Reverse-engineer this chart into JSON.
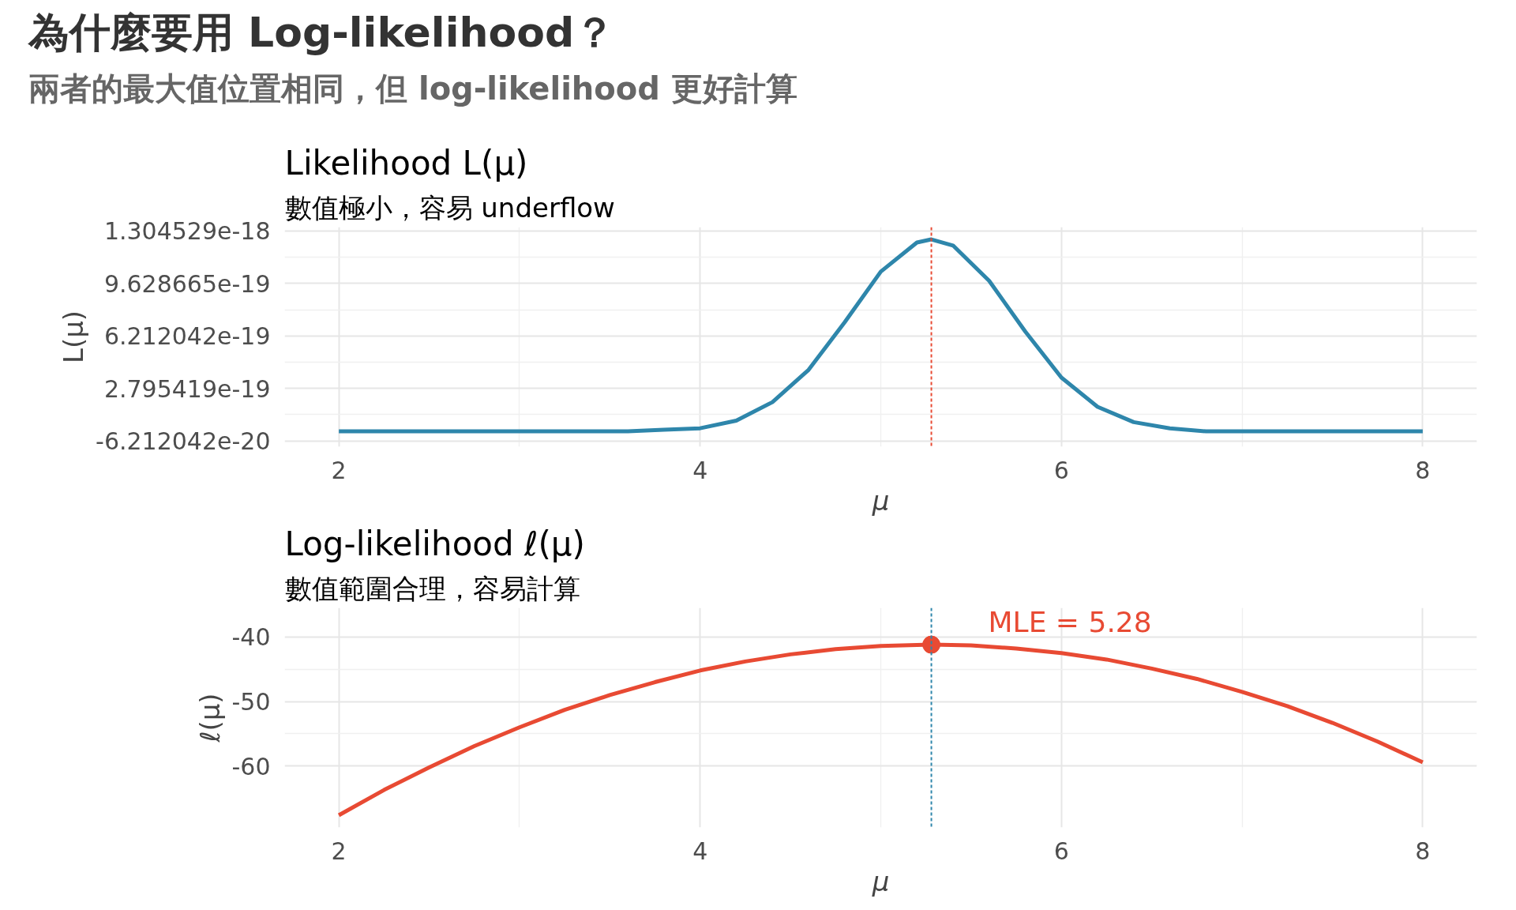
{
  "chart_data": [
    {
      "type": "other",
      "title": "為什麼要用 Log-likelihood？",
      "subtitle": "兩者的最大值位置相同，但 log-likelihood 更好計算"
    },
    {
      "type": "line",
      "title": "Likelihood L(μ)",
      "subtitle": "數值極小，容易 underflow",
      "xlabel": "μ",
      "ylabel": "L(μ)",
      "grid": true,
      "line_style": "solid",
      "xlim": [
        1.7,
        8.3
      ],
      "xticks": [
        2,
        4,
        6,
        8
      ],
      "ylim": [
        -1e-19,
        1.33e-18
      ],
      "yticks": [
        {
          "value": -6.212042e-20,
          "label": "-6.212042e-20"
        },
        {
          "value": 2.795419e-19,
          "label": "2.795419e-19"
        },
        {
          "value": 6.212042e-19,
          "label": "6.212042e-19"
        },
        {
          "value": 9.628665e-19,
          "label": "9.628665e-19"
        },
        {
          "value": 1.304529e-18,
          "label": "1.304529e-18"
        }
      ],
      "series": [
        {
          "type": "line",
          "color": "#2e86ab",
          "x": [
            2,
            3,
            3.6,
            3.8,
            4.0,
            4.2,
            4.4,
            4.6,
            4.8,
            5.0,
            5.2,
            5.28,
            5.4,
            5.6,
            5.8,
            6.0,
            6.2,
            6.4,
            6.6,
            6.8,
            7.0,
            7.5,
            8
          ],
          "values": [
            0,
            0,
            0,
            1e-20,
            2e-20,
            7e-20,
            1.9e-19,
            4e-19,
            7.1e-19,
            1.04e-18,
            1.23e-18,
            1.25e-18,
            1.21e-18,
            9.8e-19,
            6.5e-19,
            3.5e-19,
            1.6e-19,
            6e-20,
            2e-20,
            0,
            0,
            0,
            0
          ]
        }
      ],
      "ref_lines": [
        {
          "axis": "x",
          "value": 5.28,
          "label": null,
          "color": "#e84a33",
          "line_style": "dashed"
        }
      ]
    },
    {
      "type": "line",
      "title": "Log-likelihood ℓ(μ)",
      "subtitle": "數值範圍合理，容易計算",
      "xlabel": "μ",
      "ylabel": "ℓ(μ)",
      "grid": true,
      "line_style": "solid",
      "xlim": [
        1.7,
        8.3
      ],
      "xticks": [
        2,
        4,
        6,
        8
      ],
      "ylim": [
        -69.5,
        -35.5
      ],
      "yticks": [
        -60,
        -50,
        -40
      ],
      "series": [
        {
          "type": "line",
          "color": "#e84a33",
          "x": [
            2,
            2.25,
            2.5,
            2.75,
            3,
            3.25,
            3.5,
            3.75,
            4,
            4.25,
            4.5,
            4.75,
            5,
            5.28,
            5.5,
            5.75,
            6,
            6.25,
            6.5,
            6.75,
            7,
            7.25,
            7.5,
            7.75,
            8
          ],
          "values": [
            -67.6,
            -63.7,
            -60.2,
            -56.9,
            -54.0,
            -51.3,
            -49.0,
            -47.0,
            -45.2,
            -43.8,
            -42.7,
            -41.9,
            -41.4,
            -41.2,
            -41.3,
            -41.8,
            -42.5,
            -43.5,
            -44.9,
            -46.5,
            -48.5,
            -50.7,
            -53.3,
            -56.2,
            -59.4
          ]
        },
        {
          "type": "scatter",
          "marker": "circle",
          "color": "#e84a33",
          "x": [
            5.28
          ],
          "values": [
            -41.2
          ]
        }
      ],
      "ref_lines": [
        {
          "axis": "x",
          "value": 5.28,
          "label": null,
          "color": "#2e86ab",
          "line_style": "dashed"
        }
      ],
      "annotations": [
        {
          "text": "MLE = 5.28",
          "x": 5.28,
          "y": -41.2
        }
      ]
    }
  ]
}
